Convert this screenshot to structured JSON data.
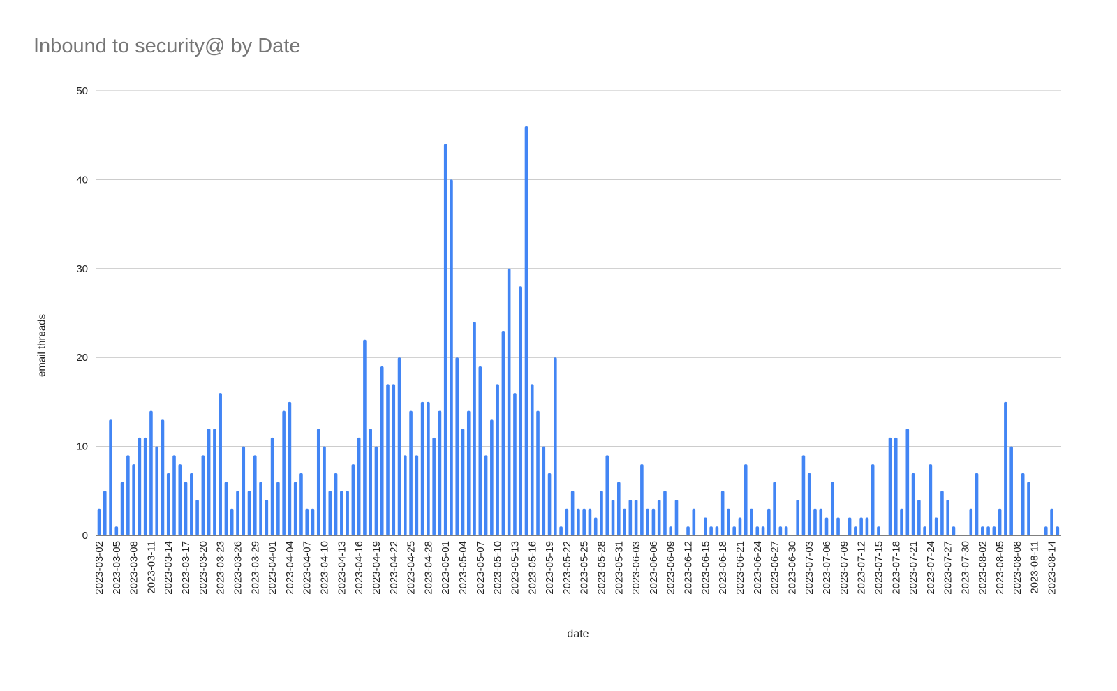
{
  "chart_data": {
    "type": "bar",
    "title": "Inbound to security@ by Date",
    "xlabel": "date",
    "ylabel": "email threads",
    "ylim": [
      0,
      50
    ],
    "yticks": [
      0,
      10,
      20,
      30,
      40,
      50
    ],
    "grid": true,
    "legend": "none",
    "bar_color": "#4285f4",
    "start_date": "2023-03-02",
    "end_date": "2023-08-15",
    "xtick_every_n_days": 3,
    "xticks": [
      "2023-03-02",
      "2023-03-05",
      "2023-03-08",
      "2023-03-11",
      "2023-03-14",
      "2023-03-17",
      "2023-03-20",
      "2023-03-23",
      "2023-03-26",
      "2023-03-29",
      "2023-04-01",
      "2023-04-04",
      "2023-04-07",
      "2023-04-10",
      "2023-04-13",
      "2023-04-16",
      "2023-04-19",
      "2023-04-22",
      "2023-04-25",
      "2023-04-28",
      "2023-05-01",
      "2023-05-04",
      "2023-05-07",
      "2023-05-10",
      "2023-05-13",
      "2023-05-16",
      "2023-05-19",
      "2023-05-22",
      "2023-05-25",
      "2023-05-28",
      "2023-05-31",
      "2023-06-03",
      "2023-06-06",
      "2023-06-09",
      "2023-06-12",
      "2023-06-15",
      "2023-06-18",
      "2023-06-21",
      "2023-06-24",
      "2023-06-27",
      "2023-06-30",
      "2023-07-03",
      "2023-07-06",
      "2023-07-09",
      "2023-07-12",
      "2023-07-15",
      "2023-07-18",
      "2023-07-21",
      "2023-07-24",
      "2023-07-27",
      "2023-07-30",
      "2023-08-02",
      "2023-08-05",
      "2023-08-08",
      "2023-08-11",
      "2023-08-14"
    ],
    "values": [
      3,
      5,
      13,
      1,
      6,
      9,
      8,
      11,
      11,
      14,
      10,
      13,
      7,
      9,
      8,
      6,
      7,
      4,
      9,
      12,
      12,
      16,
      6,
      3,
      5,
      10,
      5,
      9,
      6,
      4,
      11,
      6,
      14,
      15,
      6,
      7,
      3,
      3,
      12,
      10,
      5,
      7,
      5,
      5,
      8,
      11,
      22,
      12,
      10,
      19,
      17,
      17,
      20,
      9,
      14,
      9,
      15,
      15,
      11,
      14,
      44,
      40,
      20,
      12,
      14,
      24,
      19,
      9,
      13,
      17,
      23,
      30,
      16,
      28,
      46,
      17,
      14,
      10,
      7,
      20,
      1,
      3,
      5,
      3,
      3,
      3,
      2,
      5,
      9,
      4,
      6,
      3,
      4,
      4,
      8,
      3,
      3,
      4,
      5,
      1,
      4,
      0,
      1,
      3,
      0,
      2,
      1,
      1,
      5,
      3,
      1,
      2,
      8,
      3,
      1,
      1,
      3,
      6,
      1,
      1,
      0,
      4,
      9,
      7,
      3,
      3,
      2,
      6,
      2,
      0,
      2,
      1,
      2,
      2,
      8,
      1,
      0,
      11,
      11,
      3,
      12,
      7,
      4,
      1,
      8,
      2,
      5,
      4,
      1,
      0,
      0,
      3,
      7,
      1,
      1,
      1,
      3,
      15,
      10,
      0,
      7,
      6,
      0,
      0,
      1,
      3,
      1
    ]
  }
}
